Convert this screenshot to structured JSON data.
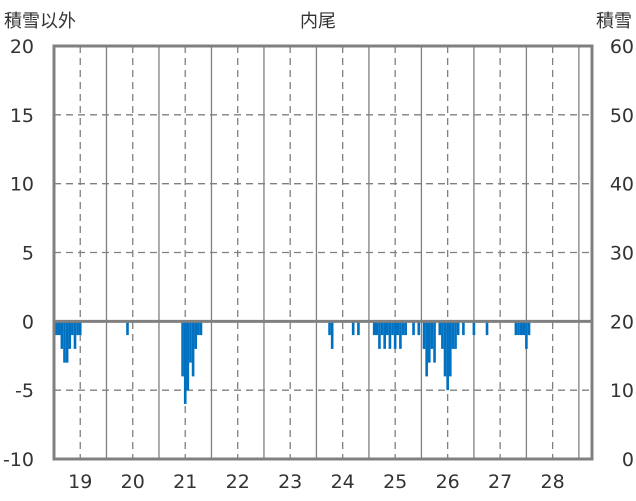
{
  "chart_data": {
    "type": "bar",
    "title": "内尾",
    "ylabel_left": "積雪以外",
    "ylabel_right": "積雪",
    "ylim_left": [
      -10,
      20
    ],
    "ylim_right": [
      0,
      60
    ],
    "left_ticks": [
      "20",
      "15",
      "10",
      "5",
      "0",
      "-5",
      "-10"
    ],
    "right_ticks": [
      "60",
      "50",
      "40",
      "30",
      "20",
      "10",
      "0"
    ],
    "x_range": [
      18.5,
      28.75
    ],
    "x_ticks": [
      "19",
      "20",
      "21",
      "22",
      "23",
      "24",
      "25",
      "26",
      "27",
      "28"
    ],
    "grid": true,
    "bar_color": "#0070c0",
    "series": [
      {
        "bars": [
          {
            "x": 18.55,
            "v": -1
          },
          {
            "x": 18.6,
            "v": -1
          },
          {
            "x": 18.65,
            "v": -2
          },
          {
            "x": 18.7,
            "v": -3
          },
          {
            "x": 18.75,
            "v": -3
          },
          {
            "x": 18.8,
            "v": -2
          },
          {
            "x": 18.85,
            "v": -1
          },
          {
            "x": 18.9,
            "v": -2
          },
          {
            "x": 18.95,
            "v": -1
          },
          {
            "x": 19.0,
            "v": -1
          },
          {
            "x": 19.9,
            "v": -1
          },
          {
            "x": 20.95,
            "v": -4
          },
          {
            "x": 21.0,
            "v": -6
          },
          {
            "x": 21.05,
            "v": -5
          },
          {
            "x": 21.1,
            "v": -3
          },
          {
            "x": 21.15,
            "v": -4
          },
          {
            "x": 21.2,
            "v": -2
          },
          {
            "x": 21.25,
            "v": -1
          },
          {
            "x": 21.3,
            "v": -1
          },
          {
            "x": 23.75,
            "v": -1
          },
          {
            "x": 23.8,
            "v": -2
          },
          {
            "x": 24.2,
            "v": -1
          },
          {
            "x": 24.3,
            "v": -1
          },
          {
            "x": 24.6,
            "v": -1
          },
          {
            "x": 24.65,
            "v": -1
          },
          {
            "x": 24.7,
            "v": -2
          },
          {
            "x": 24.75,
            "v": -1
          },
          {
            "x": 24.8,
            "v": -2
          },
          {
            "x": 24.85,
            "v": -1
          },
          {
            "x": 24.9,
            "v": -2
          },
          {
            "x": 24.95,
            "v": -1
          },
          {
            "x": 25.0,
            "v": -2
          },
          {
            "x": 25.05,
            "v": -1
          },
          {
            "x": 25.1,
            "v": -2
          },
          {
            "x": 25.15,
            "v": -1
          },
          {
            "x": 25.2,
            "v": -1
          },
          {
            "x": 25.35,
            "v": -1
          },
          {
            "x": 25.45,
            "v": -1
          },
          {
            "x": 25.55,
            "v": -2
          },
          {
            "x": 25.6,
            "v": -4
          },
          {
            "x": 25.65,
            "v": -3
          },
          {
            "x": 25.7,
            "v": -2
          },
          {
            "x": 25.75,
            "v": -3
          },
          {
            "x": 25.85,
            "v": -1
          },
          {
            "x": 25.9,
            "v": -2
          },
          {
            "x": 25.95,
            "v": -4
          },
          {
            "x": 26.0,
            "v": -5
          },
          {
            "x": 26.05,
            "v": -4
          },
          {
            "x": 26.1,
            "v": -2
          },
          {
            "x": 26.15,
            "v": -2
          },
          {
            "x": 26.2,
            "v": -1
          },
          {
            "x": 26.3,
            "v": -1
          },
          {
            "x": 26.5,
            "v": -1
          },
          {
            "x": 26.75,
            "v": -1
          },
          {
            "x": 27.3,
            "v": -1
          },
          {
            "x": 27.35,
            "v": -1
          },
          {
            "x": 27.4,
            "v": -1
          },
          {
            "x": 27.45,
            "v": -1
          },
          {
            "x": 27.5,
            "v": -2
          },
          {
            "x": 27.55,
            "v": -1
          }
        ]
      }
    ]
  }
}
